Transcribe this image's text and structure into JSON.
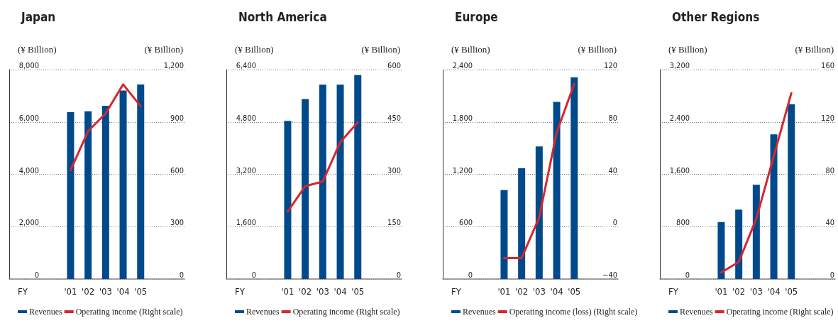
{
  "chart_data": [
    {
      "type": "bar",
      "title": "Japan",
      "xlabel": "FY",
      "ylabel": "(¥ Billion)",
      "y2label": "(¥ Billion)",
      "categories": [
        "'01",
        "'02",
        "'03",
        "'04",
        "'05"
      ],
      "series": [
        {
          "name": "Revenues",
          "color": "#004a8c",
          "values": [
            6370,
            6410,
            6620,
            7200,
            7430
          ]
        },
        {
          "name": "Operating income (Right scale)",
          "type": "line",
          "axis": "y2",
          "color": "#d7262e",
          "values": [
            624,
            847,
            949,
            1115,
            990
          ]
        }
      ],
      "ylim": [
        0,
        8000
      ],
      "yticks": [
        0,
        {
          "value": 2000,
          "label": "2,000"
        },
        {
          "value": 4000,
          "label": "4,000"
        },
        {
          "value": 6000,
          "label": "6,000"
        },
        {
          "value": 8000,
          "label": "8,000"
        }
      ],
      "y2lim": [
        0,
        1200
      ],
      "y2ticks": [
        0,
        300,
        600,
        900,
        {
          "value": 1200,
          "label": "1,200"
        }
      ],
      "grid": "y",
      "legend": "bottom",
      "marker": "none",
      "line_style": "solid"
    },
    {
      "type": "bar",
      "title": "North America",
      "xlabel": "FY",
      "ylabel": "(¥ Billion)",
      "y2label": "(¥ Billion)",
      "categories": [
        "'01",
        "'02",
        "'03",
        "'04",
        "'05"
      ],
      "series": [
        {
          "name": "Revenues",
          "color": "#004a8c",
          "values": [
            4830,
            5500,
            5940,
            5940,
            6230
          ]
        },
        {
          "name": "Operating income (Right scale)",
          "type": "line",
          "axis": "y2",
          "color": "#d7262e",
          "values": [
            193,
            266,
            279,
            392,
            449
          ]
        }
      ],
      "ylim": [
        0,
        6400
      ],
      "yticks": [
        0,
        {
          "value": 1600,
          "label": "1,600"
        },
        {
          "value": 3200,
          "label": "3,200"
        },
        {
          "value": 4800,
          "label": "4,800"
        },
        {
          "value": 6400,
          "label": "6,400"
        }
      ],
      "y2lim": [
        0,
        600
      ],
      "y2ticks": [
        0,
        150,
        300,
        450,
        600
      ],
      "grid": "y",
      "legend": "bottom",
      "marker": "none",
      "line_style": "solid"
    },
    {
      "type": "bar",
      "title": "Europe",
      "xlabel": "FY",
      "ylabel": "(¥ Billion)",
      "y2label": "(¥ Billion)",
      "categories": [
        "'01",
        "'02",
        "'03",
        "'04",
        "'05"
      ],
      "series": [
        {
          "name": "Revenues",
          "color": "#004a8c",
          "values": [
            1020,
            1270,
            1520,
            2030,
            2310
          ]
        },
        {
          "name": "Operating income (loss) (Right scale)",
          "type": "line",
          "axis": "y2",
          "color": "#d7262e",
          "values": [
            -24,
            -24,
            7,
            72,
            109
          ]
        }
      ],
      "ylim": [
        0,
        2400
      ],
      "yticks": [
        0,
        600,
        {
          "value": 1200,
          "label": "1,200"
        },
        {
          "value": 1800,
          "label": "1,800"
        },
        {
          "value": 2400,
          "label": "2,400"
        }
      ],
      "y2lim": [
        -40,
        120
      ],
      "y2ticks": [
        {
          "value": -40,
          "label": "−40"
        },
        0,
        40,
        80,
        120
      ],
      "grid": "y",
      "legend": "bottom",
      "marker": "none",
      "line_style": "solid"
    },
    {
      "type": "bar",
      "title": "Other Regions",
      "xlabel": "FY",
      "ylabel": "(¥ Billion)",
      "y2label": "(¥ Billion)",
      "categories": [
        "'01",
        "'02",
        "'03",
        "'04",
        "'05"
      ],
      "series": [
        {
          "name": "Revenues",
          "color": "#004a8c",
          "values": [
            870,
            1060,
            1440,
            2210,
            2670
          ]
        },
        {
          "name": "Operating income (Right scale)",
          "type": "line",
          "axis": "y2",
          "color": "#d7262e",
          "values": [
            5,
            13,
            46,
            94,
            142
          ]
        }
      ],
      "ylim": [
        0,
        3200
      ],
      "yticks": [
        0,
        800,
        {
          "value": 1600,
          "label": "1,600"
        },
        {
          "value": 2400,
          "label": "2,400"
        },
        {
          "value": 3200,
          "label": "3,200"
        }
      ],
      "y2lim": [
        0,
        160
      ],
      "y2ticks": [
        0,
        40,
        80,
        120,
        160
      ],
      "grid": "y",
      "legend": "bottom",
      "marker": "none",
      "line_style": "solid"
    }
  ]
}
